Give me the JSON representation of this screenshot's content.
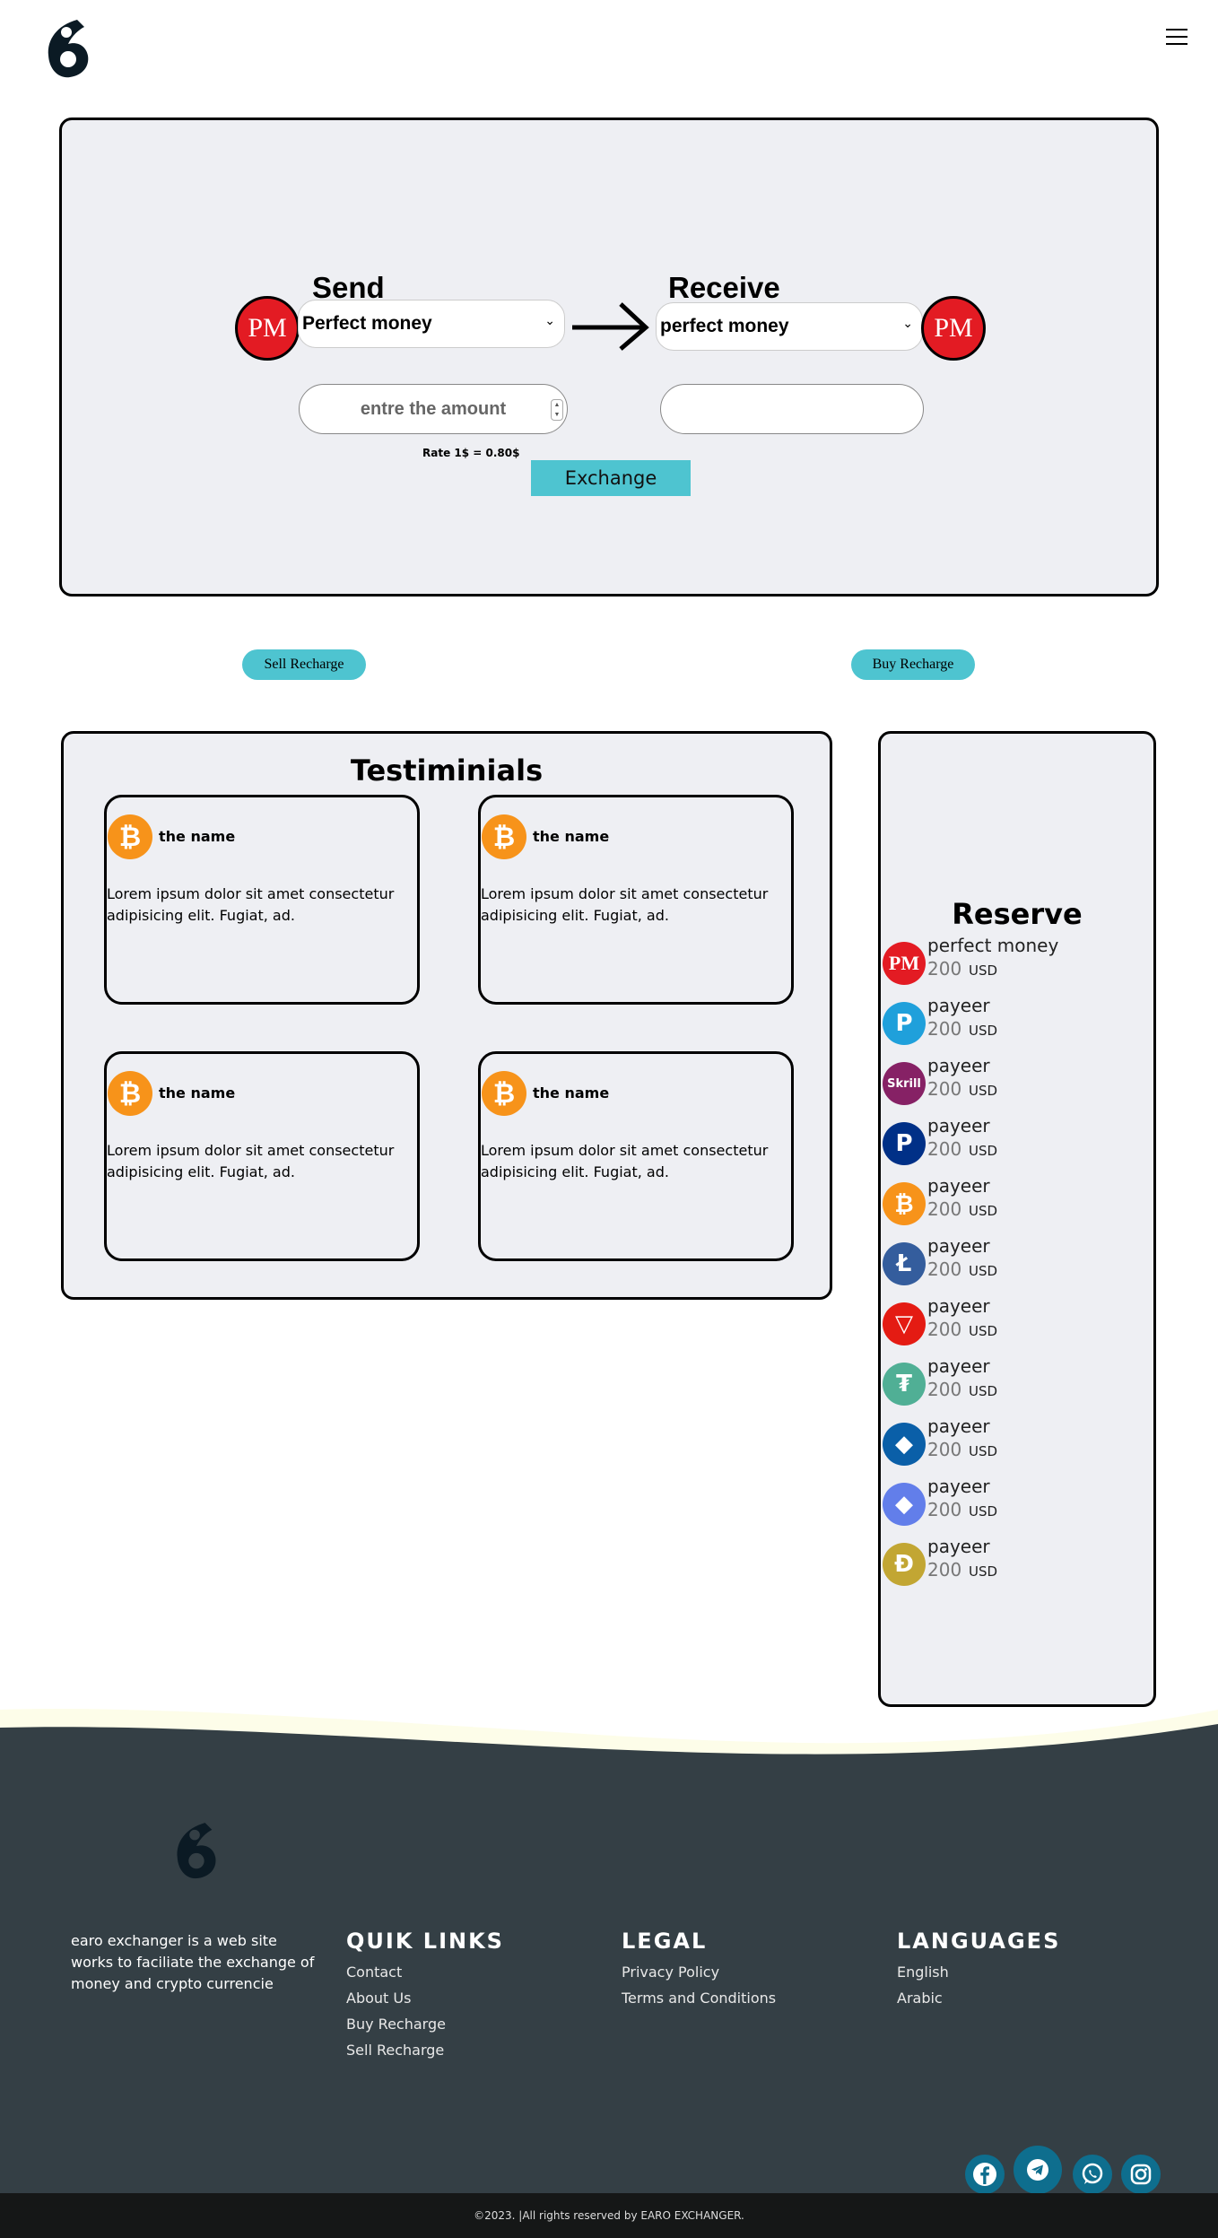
{
  "header": {
    "menu_icon": "hamburger-icon"
  },
  "exchange": {
    "send_title": "Send",
    "receive_title": "Receive",
    "send_coin_label": "PM",
    "receive_coin_label": "PM",
    "send_select": "Perfect money",
    "receive_select": "perfect money",
    "amount_placeholder": "entre the amount",
    "receive_amount": "",
    "rate": "Rate 1$ = 0.80$",
    "button": "Exchange"
  },
  "actions": {
    "sell": "Sell Recharge",
    "buy": "Buy Recharge"
  },
  "testimonials": {
    "title": "Testiminials",
    "items": [
      {
        "name": "the name",
        "text": "Lorem ipsum dolor sit amet consectetur adipisicing elit. Fugiat, ad."
      },
      {
        "name": "the name",
        "text": "Lorem ipsum dolor sit amet consectetur adipisicing elit. Fugiat, ad."
      },
      {
        "name": "the name",
        "text": "Lorem ipsum dolor sit amet consectetur adipisicing elit. Fugiat, ad."
      },
      {
        "name": "the name",
        "text": "Lorem ipsum dolor sit amet consectetur adipisicing elit. Fugiat, ad."
      }
    ]
  },
  "reserve": {
    "title": "Reserve",
    "items": [
      {
        "name": "perfect money",
        "amount": "200",
        "currency": "USD",
        "icon": "perfect-money-icon",
        "color": "#e31b23",
        "glyph": "PM"
      },
      {
        "name": "payeer",
        "amount": "200",
        "currency": "USD",
        "icon": "payeer-icon",
        "color": "#1fa0db",
        "glyph": "P"
      },
      {
        "name": "payeer",
        "amount": "200",
        "currency": "USD",
        "icon": "skrill-icon",
        "color": "#862165",
        "glyph": "Skrill"
      },
      {
        "name": "payeer",
        "amount": "200",
        "currency": "USD",
        "icon": "paypal-icon",
        "color": "#003087",
        "glyph": "P"
      },
      {
        "name": "payeer",
        "amount": "200",
        "currency": "USD",
        "icon": "bitcoin-icon",
        "color": "#f7931a",
        "glyph": "₿"
      },
      {
        "name": "payeer",
        "amount": "200",
        "currency": "USD",
        "icon": "litecoin-icon",
        "color": "#345d9d",
        "glyph": "Ł"
      },
      {
        "name": "payeer",
        "amount": "200",
        "currency": "USD",
        "icon": "tron-icon",
        "color": "#e41b13",
        "glyph": "▽"
      },
      {
        "name": "payeer",
        "amount": "200",
        "currency": "USD",
        "icon": "tether-icon",
        "color": "#50af95",
        "glyph": "₮"
      },
      {
        "name": "payeer",
        "amount": "200",
        "currency": "USD",
        "icon": "webmoney-icon",
        "color": "#0a5fa8",
        "glyph": "◆"
      },
      {
        "name": "payeer",
        "amount": "200",
        "currency": "USD",
        "icon": "ethereum-icon",
        "color": "#627eea",
        "glyph": "◆"
      },
      {
        "name": "payeer",
        "amount": "200",
        "currency": "USD",
        "icon": "dogecoin-icon",
        "color": "#c2a633",
        "glyph": "Ð"
      }
    ]
  },
  "footer": {
    "about": "earo exchanger is a web site works to faciliate the exchange of money and crypto currencie",
    "quick_links": {
      "title": "QUIK LINKS",
      "links": [
        "Contact",
        "About Us",
        "Buy Recharge",
        "Sell Recharge"
      ]
    },
    "legal": {
      "title": "LEGAL",
      "links": [
        "Privacy Policy",
        "Terms and Conditions"
      ]
    },
    "languages": {
      "title": "LANGUAGES",
      "links": [
        "English",
        "Arabic"
      ]
    },
    "copyright": "©2023. |All rights reserved by EARO EXCHANGER."
  },
  "colors": {
    "accent": "#4ec4d0",
    "footer_bg": "#343f45",
    "panel_bg": "#eeeff3",
    "social_bg": "#0e6e8e"
  }
}
